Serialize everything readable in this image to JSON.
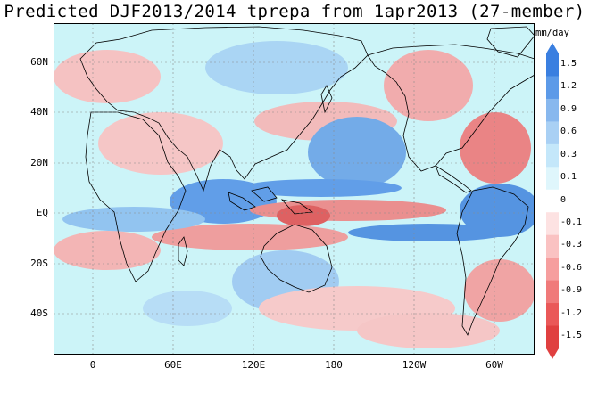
{
  "title": "Predicted DJF2013/2014 tprepa from 1apr2013 (27-member)",
  "map": {
    "latitude_labels": [
      "60N",
      "40N",
      "20N",
      "EQ",
      "20S",
      "40S"
    ],
    "longitude_labels": [
      "0",
      "60E",
      "120E",
      "180",
      "120W",
      "60W"
    ],
    "colors": {
      "ocean_wet_strong": "#4f8fe0",
      "ocean_wet": "#8fc2f0",
      "ocean_near_zero": "#ccf4f8",
      "ocean_dry": "#f6a6a6",
      "ocean_dry_strong": "#e85c5c",
      "coastline": "#000000",
      "gridline": "#8a8a8a"
    }
  },
  "colorbar": {
    "unit": "mm/day",
    "labels": [
      "1.5",
      "1.2",
      "0.9",
      "0.6",
      "0.3",
      "0.1",
      "0",
      "-0.1",
      "-0.3",
      "-0.6",
      "-0.9",
      "-1.2",
      "-1.5"
    ],
    "colors": [
      "#3a7fe0",
      "#5c9ae8",
      "#88b8ee",
      "#a9d0f4",
      "#c4e7fa",
      "#dff6fc",
      "#ffffff",
      "#fde2e2",
      "#fac2c2",
      "#f69e9e",
      "#f07a7a",
      "#ea5858",
      "#e04040"
    ]
  }
}
